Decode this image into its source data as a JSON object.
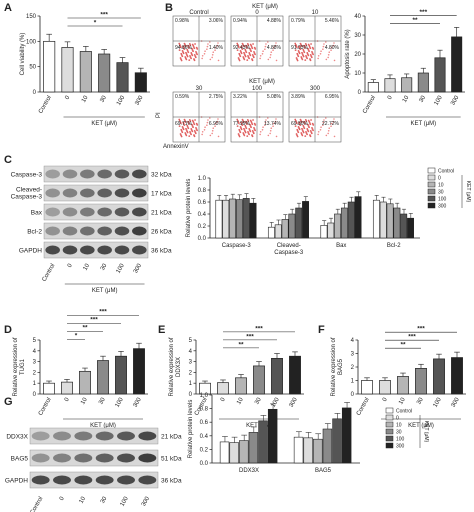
{
  "figure": {
    "panel_letters": [
      "A",
      "B",
      "C",
      "D",
      "E",
      "F",
      "G"
    ],
    "bar_fills": [
      "#ffffff",
      "#dddddd",
      "#b5b5b5",
      "#8a8a8a",
      "#555555",
      "#222222"
    ],
    "error_color": "#333333"
  },
  "panelA": {
    "chart_data": {
      "type": "bar",
      "ylabel": "Cell viability (%)",
      "categories": [
        "Control",
        "0",
        "10",
        "30",
        "100",
        "300"
      ],
      "values": [
        100,
        88,
        80,
        75,
        58,
        38
      ],
      "errors": [
        14,
        11,
        10,
        9,
        10,
        9
      ],
      "ylim": [
        0,
        150
      ],
      "yticks": [
        0,
        50,
        100,
        150
      ],
      "xlabel": "KET (μM)",
      "sig": [
        {
          "from": 1,
          "to": 5,
          "label": "***"
        },
        {
          "from": 1,
          "to": 4,
          "label": "*"
        }
      ]
    }
  },
  "panelB": {
    "title_top": "KET (μM)",
    "title_mid": "KET (μM)",
    "flow_labels_top": [
      "Control",
      "0",
      "10"
    ],
    "flow_labels_bottom": [
      "30",
      "100",
      "300"
    ],
    "flow_quadrants": [
      [
        "0.98%",
        "3.06%",
        "94.86%",
        "1.40%"
      ],
      [
        "0.94%",
        "4.88%",
        "92.43%",
        "4.88%"
      ],
      [
        "0.79%",
        "5.46%",
        "91.03%",
        "4.80%"
      ],
      [
        "0.59%",
        "2.75%",
        "69.71%",
        "6.95%"
      ],
      [
        "3.22%",
        "5.08%",
        "77.99%",
        "13.74%"
      ],
      [
        "3.89%",
        "6.95%",
        "69.80%",
        "22.72%"
      ]
    ],
    "yaxis": "PI",
    "xaxis": "AnnexinV",
    "chart_data": {
      "type": "bar",
      "ylabel": "Apoptosis rate (%)",
      "categories": [
        "Control",
        "0",
        "10",
        "30",
        "100",
        "300"
      ],
      "values": [
        5,
        7,
        7.5,
        10,
        18,
        29
      ],
      "errors": [
        1.5,
        2,
        2,
        2.5,
        4,
        5
      ],
      "ylim": [
        0,
        40
      ],
      "yticks": [
        0,
        10,
        20,
        30,
        40
      ],
      "xlabel": "KET (μM)",
      "sig": [
        {
          "from": 1,
          "to": 5,
          "label": "***"
        },
        {
          "from": 1,
          "to": 4,
          "label": "**"
        }
      ]
    }
  },
  "panelC": {
    "blot_rows": [
      "Caspase-3",
      "Cleaved-\nCaspase-3",
      "Bax",
      "Bcl-2",
      "GAPDH"
    ],
    "blot_kda": [
      "32 kDa",
      "17 kDa",
      "21 kDa",
      "26 kDa",
      "36 kDa"
    ],
    "lanes": [
      "Control",
      "0",
      "10",
      "30",
      "100",
      "300"
    ],
    "xlabel": "KET (μM)",
    "chart_data": {
      "type": "bar",
      "ylabel": "Relative protein levels",
      "ylim": [
        0,
        1.0
      ],
      "yticks": [
        0,
        0.2,
        0.4,
        0.6,
        0.8,
        1.0
      ],
      "groups": [
        "Caspase-3",
        "Cleaved-\nCaspase-3",
        "Bax",
        "Bcl-2"
      ],
      "series": [
        {
          "name": "Control",
          "values": [
            0.63,
            0.18,
            0.21,
            0.63
          ]
        },
        {
          "name": "0",
          "values": [
            0.63,
            0.22,
            0.25,
            0.6
          ]
        },
        {
          "name": "10",
          "values": [
            0.65,
            0.31,
            0.4,
            0.57
          ]
        },
        {
          "name": "30",
          "values": [
            0.64,
            0.4,
            0.5,
            0.5
          ]
        },
        {
          "name": "100",
          "values": [
            0.66,
            0.5,
            0.6,
            0.4
          ]
        },
        {
          "name": "300",
          "values": [
            0.58,
            0.61,
            0.69,
            0.33
          ]
        }
      ],
      "legend_title": "KET (μM)"
    }
  },
  "panelD": {
    "chart_data": {
      "type": "bar",
      "ylabel": "Relative expression of\nTUG1",
      "categories": [
        "Control",
        "0",
        "10",
        "30",
        "100",
        "300"
      ],
      "values": [
        1.0,
        1.1,
        2.1,
        3.1,
        3.5,
        4.2
      ],
      "errors": [
        0.2,
        0.25,
        0.3,
        0.4,
        0.45,
        0.5
      ],
      "ylim": [
        0,
        5
      ],
      "yticks": [
        0,
        1,
        2,
        3,
        4,
        5
      ],
      "xlabel": "KET (μM)",
      "sig": [
        {
          "from": 1,
          "to": 5,
          "label": "***"
        },
        {
          "from": 1,
          "to": 4,
          "label": "***"
        },
        {
          "from": 1,
          "to": 3,
          "label": "**"
        },
        {
          "from": 1,
          "to": 2,
          "label": "*"
        }
      ]
    }
  },
  "panelE": {
    "chart_data": {
      "type": "bar",
      "ylabel": "Relative expression of\nDDX3X",
      "categories": [
        "Control",
        "0",
        "10",
        "30",
        "100",
        "300"
      ],
      "values": [
        1.0,
        1.05,
        1.5,
        2.6,
        3.3,
        3.5
      ],
      "errors": [
        0.2,
        0.25,
        0.3,
        0.4,
        0.45,
        0.4
      ],
      "ylim": [
        0,
        5
      ],
      "yticks": [
        0,
        1,
        2,
        3,
        4,
        5
      ],
      "xlabel": "KET (μM)",
      "sig": [
        {
          "from": 1,
          "to": 5,
          "label": "***"
        },
        {
          "from": 1,
          "to": 4,
          "label": "***"
        },
        {
          "from": 1,
          "to": 3,
          "label": "**"
        }
      ]
    }
  },
  "panelG": {
    "chart_data": {
      "type": "bar",
      "ylabel": "Relative expression of\nBAG5",
      "categories": [
        "Control",
        "0",
        "10",
        "30",
        "100",
        "300"
      ],
      "values": [
        1.0,
        1.0,
        1.3,
        1.9,
        2.6,
        2.7
      ],
      "errors": [
        0.2,
        0.2,
        0.25,
        0.3,
        0.35,
        0.4
      ],
      "ylim": [
        0,
        4
      ],
      "yticks": [
        0,
        1,
        2,
        3,
        4
      ],
      "xlabel": "KET (μM)",
      "sig": [
        {
          "from": 1,
          "to": 5,
          "label": "***"
        },
        {
          "from": 1,
          "to": 4,
          "label": "***"
        },
        {
          "from": 1,
          "to": 3,
          "label": "**"
        }
      ]
    }
  },
  "panelF": {
    "blot_rows": [
      "DDX3X",
      "BAG5",
      "GAPDH"
    ],
    "blot_kda": [
      "21 kDa",
      "51 kDa",
      "36 kDa"
    ],
    "lanes": [
      "Control",
      "0",
      "10",
      "30",
      "100",
      "300"
    ],
    "xlabel": "KET (μM)",
    "chart_data": {
      "type": "bar",
      "ylabel": "Relative protein levels",
      "ylim": [
        0,
        1.0
      ],
      "yticks": [
        0,
        0.2,
        0.4,
        0.6,
        0.8,
        1.0
      ],
      "groups": [
        "DDX3X",
        "BAG5"
      ],
      "series": [
        {
          "name": "Control",
          "values": [
            0.31,
            0.38
          ]
        },
        {
          "name": "0",
          "values": [
            0.3,
            0.37
          ]
        },
        {
          "name": "10",
          "values": [
            0.33,
            0.35
          ]
        },
        {
          "name": "30",
          "values": [
            0.45,
            0.5
          ]
        },
        {
          "name": "100",
          "values": [
            0.62,
            0.65
          ]
        },
        {
          "name": "300",
          "values": [
            0.79,
            0.81
          ]
        }
      ],
      "legend_title": "KET (μM)"
    }
  }
}
